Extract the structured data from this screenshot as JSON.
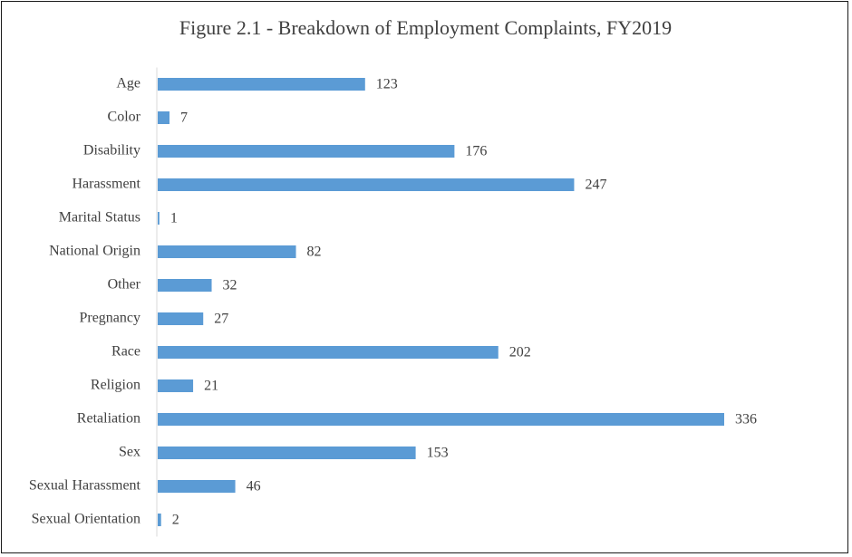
{
  "chart_data": {
    "type": "bar",
    "orientation": "horizontal",
    "title": "Figure 2.1 - Breakdown of Employment Complaints, FY2019",
    "xlabel": "",
    "ylabel": "",
    "categories": [
      "Age",
      "Color",
      "Disability",
      "Harassment",
      "Marital Status",
      "National Origin",
      "Other",
      "Pregnancy",
      "Race",
      "Religion",
      "Retaliation",
      "Sex",
      "Sexual Harassment",
      "Sexual Orientation"
    ],
    "values": [
      123,
      7,
      176,
      247,
      1,
      82,
      32,
      27,
      202,
      21,
      336,
      153,
      46,
      2
    ],
    "value_labels": [
      "123",
      "7",
      "176",
      "247",
      "1",
      "82",
      "32",
      "27",
      "202",
      "21",
      "336",
      "153",
      "46",
      "2"
    ],
    "xlim": [
      0,
      336
    ],
    "grid": false,
    "legend": "none",
    "colors": {
      "bar": "#5b9bd5",
      "text": "#404040",
      "axis": "#d9d9d9",
      "border": "#1a1a1a"
    }
  }
}
